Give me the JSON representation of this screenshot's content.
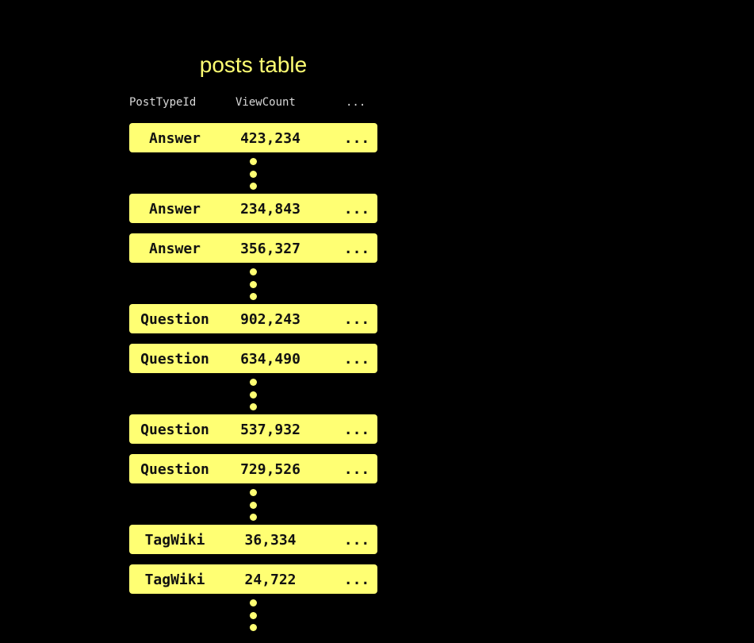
{
  "title": "posts table",
  "columns": [
    "PostTypeId",
    "ViewCount",
    "..."
  ],
  "rows": [
    {
      "type": "Answer",
      "views": "423,234",
      "more": "...",
      "gap_after": true
    },
    {
      "type": "Answer",
      "views": "234,843",
      "more": "...",
      "gap_after": false
    },
    {
      "type": "Answer",
      "views": "356,327",
      "more": "...",
      "gap_after": true
    },
    {
      "type": "Question",
      "views": "902,243",
      "more": "...",
      "gap_after": false
    },
    {
      "type": "Question",
      "views": "634,490",
      "more": "...",
      "gap_after": true
    },
    {
      "type": "Question",
      "views": "537,932",
      "more": "...",
      "gap_after": false
    },
    {
      "type": "Question",
      "views": "729,526",
      "more": "...",
      "gap_after": true
    },
    {
      "type": "TagWiki",
      "views": "36,334",
      "more": "...",
      "gap_after": false
    },
    {
      "type": "TagWiki",
      "views": "24,722",
      "more": "...",
      "gap_after": true
    }
  ],
  "colors": {
    "accent": "#ffff73",
    "background": "#000000",
    "header_text": "#d8d8d8"
  }
}
